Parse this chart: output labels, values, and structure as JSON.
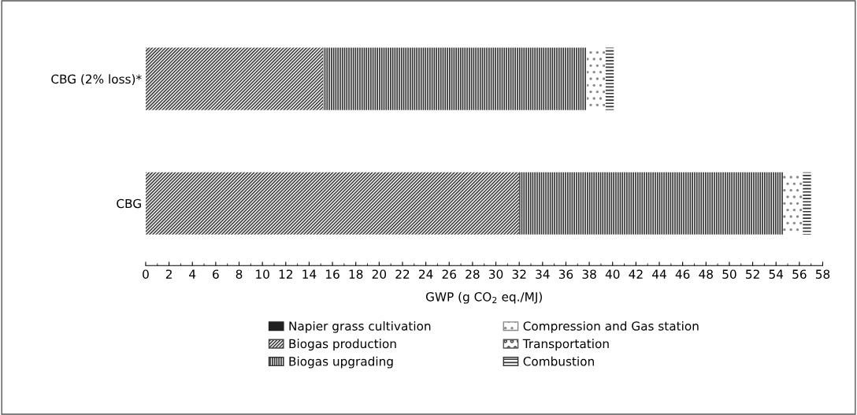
{
  "chart_data": {
    "type": "bar",
    "orientation": "horizontal",
    "stacked": true,
    "categories": [
      "CBG (2% loss)*",
      "CBG"
    ],
    "series": [
      {
        "name": "Napier grass cultivation",
        "color": "#222222",
        "values": [
          0,
          0
        ]
      },
      {
        "name": "Biogas production",
        "color": "#444444",
        "values": [
          15.2,
          32.0
        ]
      },
      {
        "name": "Biogas upgrading",
        "color": "#333333",
        "values": [
          22.6,
          22.6
        ]
      },
      {
        "name": "Compression and Gas station",
        "color": "#888888",
        "values": [
          1.6,
          1.7
        ]
      },
      {
        "name": "Transportation",
        "color": "#555555",
        "values": [
          0,
          0
        ]
      },
      {
        "name": "Combustion",
        "color": "#333333",
        "values": [
          0.7,
          0.7
        ]
      }
    ],
    "xlabel": "GWP (g CO$_{2}$ eq./MJ)",
    "xlim": [
      0,
      58
    ],
    "xticks": [
      0,
      2,
      4,
      6,
      8,
      10,
      12,
      14,
      16,
      18,
      20,
      22,
      24,
      26,
      28,
      30,
      32,
      34,
      36,
      38,
      40,
      42,
      44,
      46,
      48,
      50,
      52,
      54,
      56,
      58
    ],
    "grid": false,
    "legend": "bottom"
  }
}
